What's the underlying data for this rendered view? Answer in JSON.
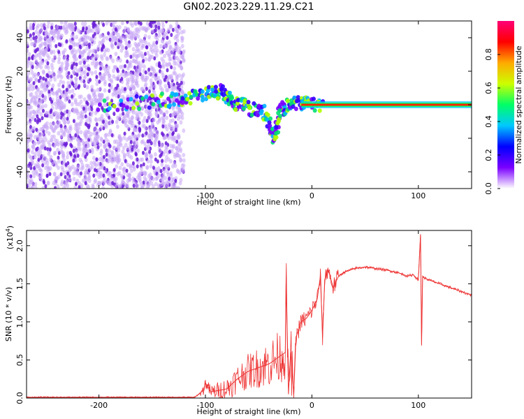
{
  "figure": {
    "title": "GN02.2023.229.11.29.C21"
  },
  "colors": {
    "snr_line": "#ee3333",
    "spectrogram_floor": "#c9a8f5",
    "spectrogram_mid": "#6a1bd8",
    "band_core": "#ff2200"
  },
  "chart_data": [
    {
      "type": "heatmap",
      "title": "",
      "xlabel": "Height of straight line (km)",
      "ylabel": "Frequency (Hz)",
      "xlim": [
        -268,
        150
      ],
      "ylim": [
        -50,
        50
      ],
      "xticks": [
        -200,
        -100,
        0,
        100
      ],
      "xtick_labels": [
        "-200",
        "-100",
        "0",
        "100"
      ],
      "yticks": [
        -40,
        -20,
        0,
        20,
        40
      ],
      "ytick_labels": [
        "-40",
        "-20",
        "0",
        "20",
        "40"
      ],
      "colorbar": {
        "label": "Normalized spectral amplitude",
        "range": [
          0,
          1
        ],
        "ticks": [
          0.0,
          0.2,
          0.4,
          0.6,
          0.8
        ],
        "tick_labels": [
          "0.0",
          "0.2",
          "0.4",
          "0.6",
          "0.8"
        ],
        "colormap": [
          "#ffffff",
          "#7a00ff",
          "#0000ff",
          "#00c8ff",
          "#00ff66",
          "#ccff00",
          "#ffaa00",
          "#ff0000",
          "#ff0077"
        ]
      },
      "features": {
        "broadband_noise_extent_km": [
          -268,
          -120
        ],
        "tone_band_extent_km": [
          -10,
          150
        ],
        "tone_frequency_hz": 0,
        "features_legend": "",
        "chirp_points": [
          {
            "x": -200,
            "y": 0
          },
          {
            "x": -150,
            "y": 2
          },
          {
            "x": -120,
            "y": 4
          },
          {
            "x": -100,
            "y": 6
          },
          {
            "x": -85,
            "y": 8
          },
          {
            "x": -75,
            "y": 2
          },
          {
            "x": -60,
            "y": -2
          },
          {
            "x": -45,
            "y": -4
          },
          {
            "x": -35,
            "y": -20
          },
          {
            "x": -30,
            "y": -3
          },
          {
            "x": -20,
            "y": 0
          },
          {
            "x": -5,
            "y": 1
          },
          {
            "x": 10,
            "y": 0
          }
        ]
      }
    },
    {
      "type": "line",
      "title": "",
      "xlabel": "Height of straight line (km)",
      "ylabel": "SNR (10 * v/v)",
      "scale_note": "(x10",
      "scale_exponent": "4",
      "scale_close": ")",
      "xlim": [
        -268,
        150
      ],
      "ylim": [
        0,
        2.2
      ],
      "xticks": [
        -200,
        -100,
        0,
        100
      ],
      "xtick_labels": [
        "-200",
        "-100",
        "0",
        "100"
      ],
      "yticks": [
        0.0,
        0.5,
        1.0,
        1.5,
        2.0
      ],
      "ytick_labels": [
        "0.0",
        "0.5",
        "1.0",
        "1.5",
        "2.0"
      ],
      "series": [
        {
          "values_description": "",
          "x": [
            -268,
            -230,
            -200,
            -150,
            -110,
            -102,
            -100,
            -95,
            -80,
            -70,
            -60,
            -50,
            -40,
            -35,
            -30,
            -25,
            -24,
            -22,
            -20,
            -17,
            -15,
            -10,
            -5,
            0,
            5,
            8,
            10,
            12,
            15,
            20,
            25,
            30,
            40,
            50,
            60,
            70,
            80,
            90,
            95,
            100,
            102,
            103,
            104,
            105,
            110,
            120,
            130,
            140,
            150
          ],
          "y": [
            0.01,
            0.01,
            0.01,
            0.01,
            0.01,
            0.1,
            0.2,
            0.08,
            0.12,
            0.25,
            0.35,
            0.4,
            0.45,
            0.5,
            0.55,
            0.6,
            1.5,
            0.05,
            0.6,
            0.05,
            0.8,
            1.0,
            1.05,
            1.15,
            1.3,
            1.6,
            0.8,
            1.55,
            1.7,
            1.45,
            1.6,
            1.65,
            1.7,
            1.72,
            1.7,
            1.68,
            1.65,
            1.6,
            1.62,
            1.55,
            2.15,
            0.7,
            1.6,
            1.58,
            1.55,
            1.5,
            1.45,
            1.4,
            1.35
          ]
        }
      ]
    }
  ]
}
